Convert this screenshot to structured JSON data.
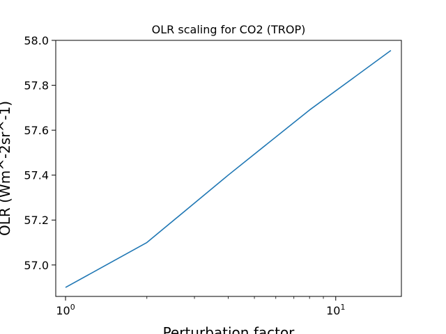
{
  "chart_data": {
    "type": "line",
    "title": "OLR scaling for CO2 (TROP)",
    "xlabel": "Perturbation factor",
    "ylabel": "OLR (Wm^-2sr^-1)",
    "xscale": "log",
    "xlim": [
      0.92,
      17.5
    ],
    "ylim": [
      56.86,
      58.0
    ],
    "grid": false,
    "x_ticks": [
      {
        "value": 1,
        "base": "10",
        "exp": "0"
      },
      {
        "value": 10,
        "base": "10",
        "exp": "1"
      }
    ],
    "x_minor_ticks": [
      2,
      3,
      4,
      5,
      6,
      7,
      8,
      9
    ],
    "y_ticks": [
      57.0,
      57.2,
      57.4,
      57.6,
      57.8,
      58.0
    ],
    "y_tick_labels": [
      "57.0",
      "57.2",
      "57.4",
      "57.6",
      "57.8",
      "58.0"
    ],
    "series": [
      {
        "color": "#1f77b4",
        "x": [
          1,
          2,
          4,
          8,
          16
        ],
        "y": [
          56.9,
          57.1,
          57.4,
          57.69,
          57.955
        ]
      }
    ]
  }
}
